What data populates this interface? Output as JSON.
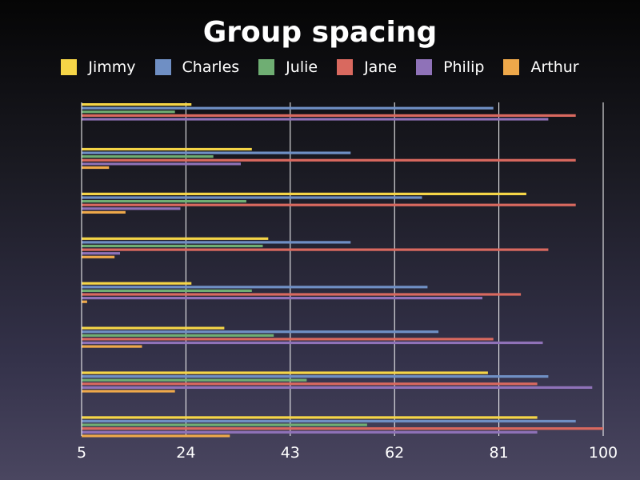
{
  "chart_data": {
    "type": "bar",
    "orientation": "horizontal",
    "title": "Group spacing",
    "xlabel": "",
    "ylabel": "",
    "xlim": [
      5,
      100
    ],
    "x_ticks": [
      "5",
      "24",
      "43",
      "62",
      "81",
      "100"
    ],
    "x_tick_values": [
      5,
      24,
      43,
      62,
      81,
      100
    ],
    "grid": true,
    "legend_position": "top",
    "series": [
      {
        "name": "Jimmy",
        "color": "#f5d547",
        "values": [
          25,
          36,
          86,
          39,
          25,
          31,
          79,
          88
        ]
      },
      {
        "name": "Charles",
        "color": "#6f8fc4",
        "values": [
          80,
          54,
          67,
          54,
          68,
          70,
          90,
          95
        ]
      },
      {
        "name": "Julie",
        "color": "#6fae73",
        "values": [
          22,
          29,
          35,
          38,
          36,
          40,
          46,
          57
        ]
      },
      {
        "name": "Jane",
        "color": "#d9695f",
        "values": [
          95,
          95,
          95,
          90,
          85,
          80,
          88,
          100
        ]
      },
      {
        "name": "Philip",
        "color": "#8f72b8",
        "values": [
          90,
          34,
          23,
          12,
          78,
          89,
          98,
          88
        ]
      },
      {
        "name": "Arthur",
        "color": "#eea84a",
        "values": [
          5,
          10,
          13,
          11,
          6,
          16,
          22,
          32
        ]
      }
    ]
  }
}
